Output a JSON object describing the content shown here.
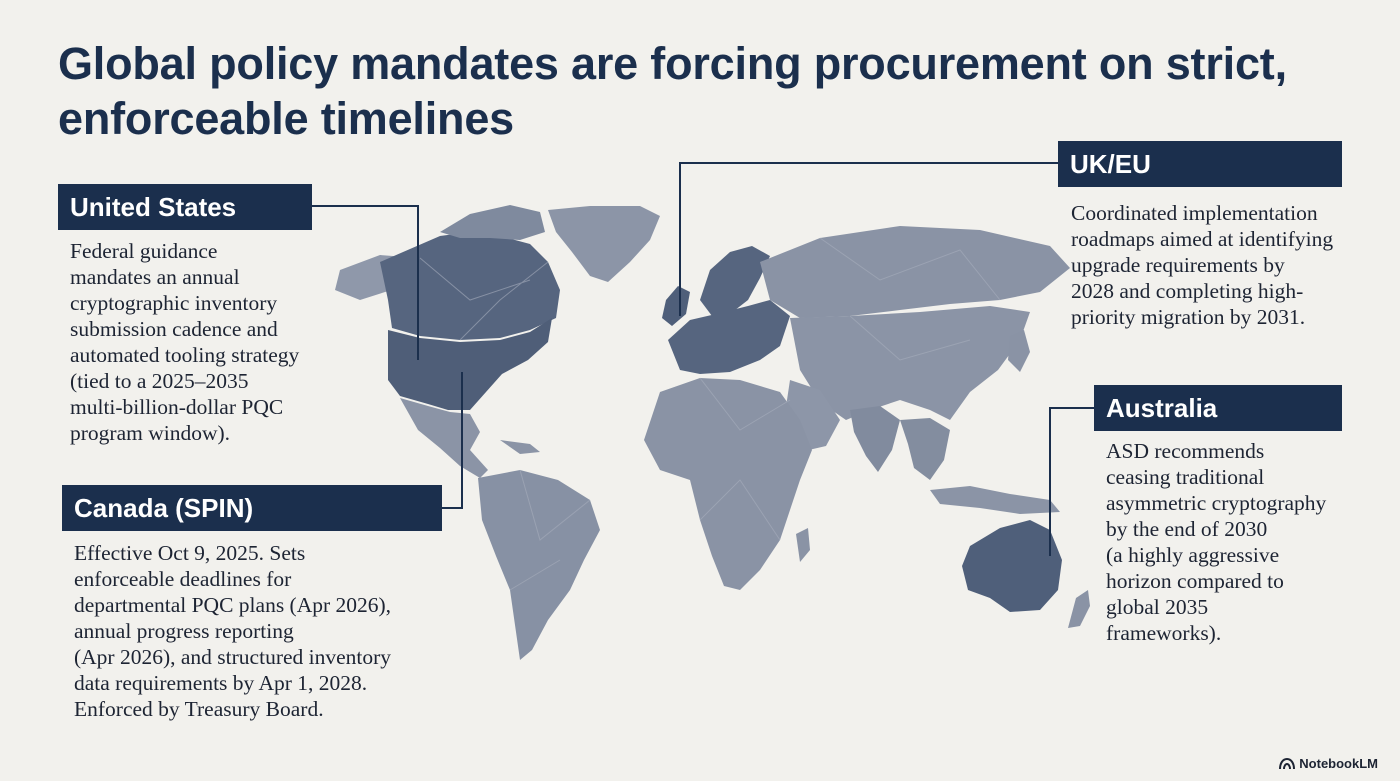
{
  "title": "Global policy mandates are forcing procurement on strict, enforceable timelines",
  "regions": {
    "us": {
      "label": "United States",
      "lines": [
        "Federal guidance",
        "mandates an annual",
        "cryptographic inventory",
        "submission cadence and",
        "automated tooling strategy",
        "(tied to a 2025–2035",
        "multi-billion-dollar PQC",
        "program window)."
      ]
    },
    "canada": {
      "label": "Canada (SPIN)",
      "lines": [
        "Effective Oct 9, 2025. Sets",
        "enforceable deadlines for",
        "departmental PQC plans (Apr 2026),",
        "annual progress reporting",
        "(Apr 2026), and structured inventory",
        "data requirements by Apr 1, 2028.",
        "Enforced by Treasury Board."
      ]
    },
    "ukeu": {
      "label": "UK/EU",
      "lines": [
        "Coordinated implementation",
        "roadmaps aimed at identifying",
        "upgrade requirements by",
        "2028 and completing high-",
        "priority migration by 2031."
      ]
    },
    "australia": {
      "label": "Australia",
      "lines": [
        "ASD recommends",
        "ceasing traditional",
        "asymmetric cryptography",
        "by the end of 2030",
        "(a highly aggressive",
        "horizon compared to",
        "global 2035",
        "frameworks)."
      ]
    }
  },
  "brand": "NotebookLM",
  "colors": {
    "background": "#f2f1ed",
    "label_bg": "#1b2f4d",
    "highlight_land": "#4f5f7a",
    "land": "#8b94a6"
  },
  "icons": {
    "brand": "notebooklm-logo-icon"
  }
}
